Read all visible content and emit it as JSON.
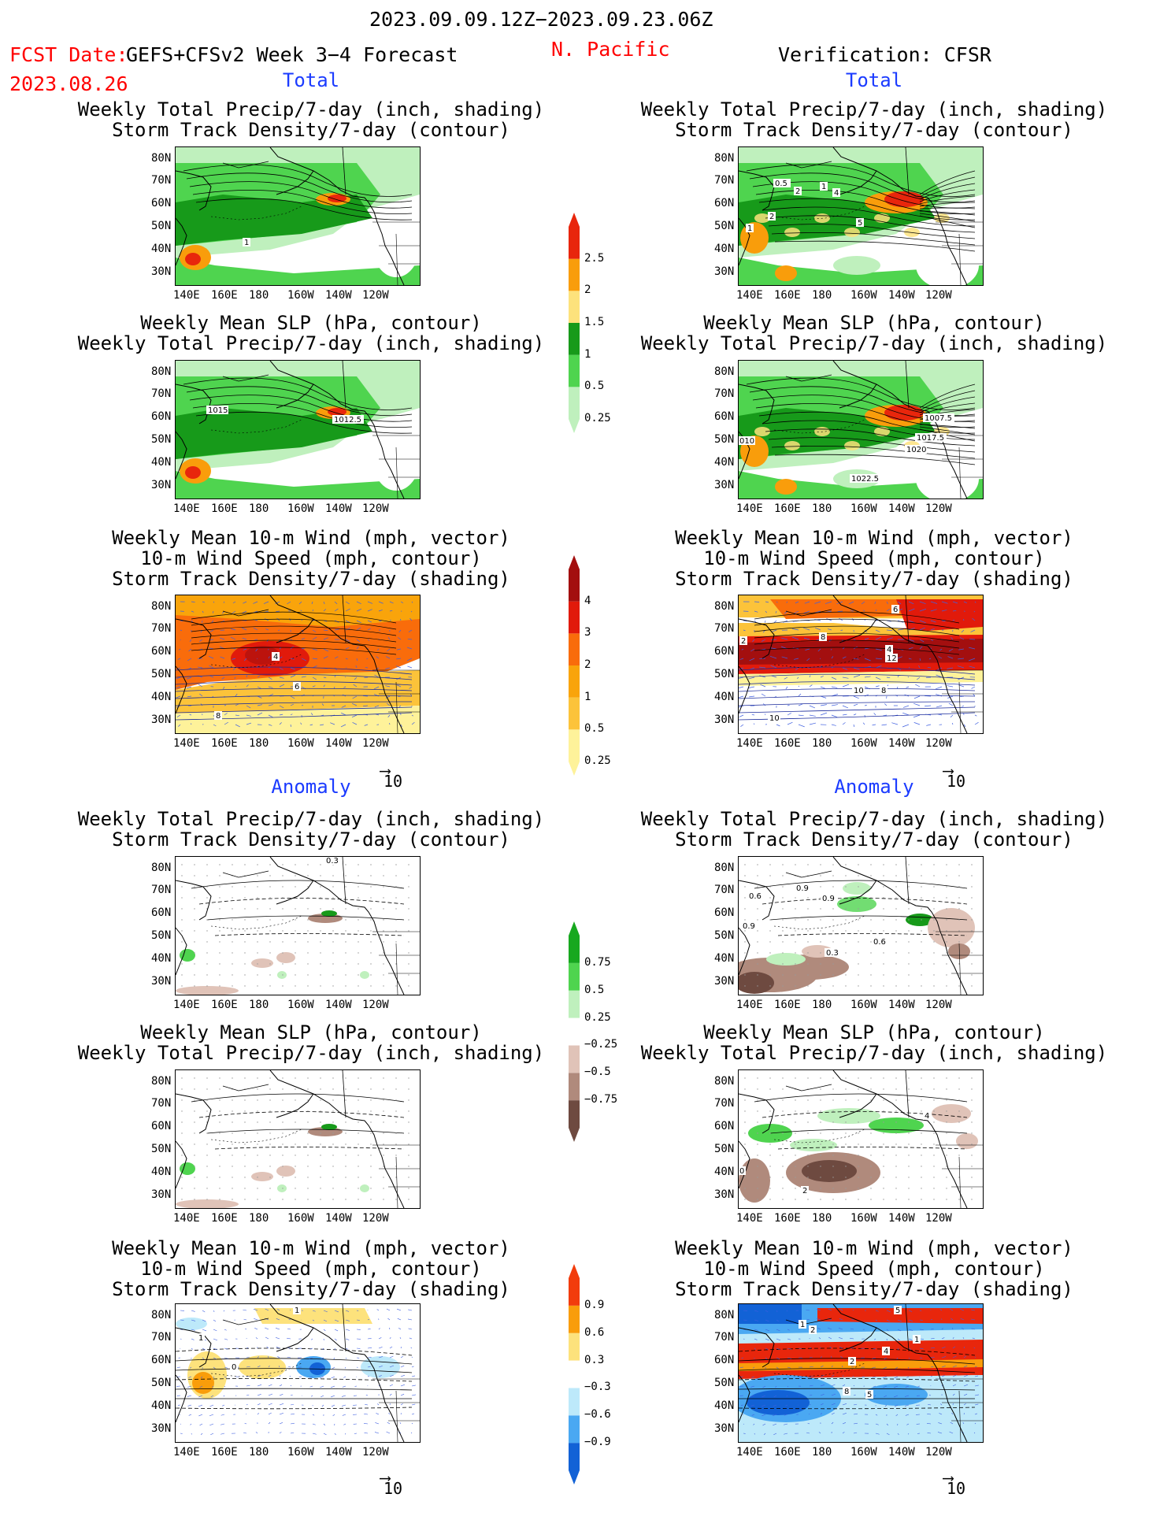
{
  "header": {
    "date_range": "2023.09.09.12Z−2023.09.23.06Z",
    "fcst_label": "FCST Date:",
    "fcst_date": "2023.08.26",
    "forecast_name": "GEFS+CFSv2 Week 3−4 Forecast",
    "region": "N. Pacific",
    "verification": "Verification: CFSR"
  },
  "sections": {
    "total_left": "Total",
    "total_right": "Total",
    "anomaly_left": "Anomaly",
    "anomaly_right": "Anomaly"
  },
  "titles": {
    "precip_track": [
      "Weekly Total Precip/7-day (inch, shading)",
      "Storm Track Density/7-day (contour)"
    ],
    "slp_precip": [
      "Weekly Mean SLP (hPa, contour)",
      "Weekly Total Precip/7-day (inch, shading)"
    ],
    "wind_track": [
      "Weekly Mean 10-m Wind (mph, vector)",
      "10-m Wind Speed (mph, contour)",
      "Storm Track Density/7-day (shading)"
    ]
  },
  "axes": {
    "lat_labels": [
      "80N",
      "70N",
      "60N",
      "50N",
      "40N",
      "30N"
    ],
    "lon_labels": [
      "140E",
      "160E",
      "180",
      "160W",
      "140W",
      "120W"
    ]
  },
  "vector_ref": "10",
  "colorbars": {
    "precip_total": {
      "labels": [
        "2.5",
        "2",
        "1.5",
        "1",
        "0.5",
        "0.25"
      ],
      "colors": [
        "#e8260c",
        "#f99d0b",
        "#fde27c",
        "#179a1a",
        "#4fd44f",
        "#bff0bd"
      ]
    },
    "track_total": {
      "labels": [
        "4",
        "3",
        "2",
        "1",
        "0.5",
        "0.25"
      ],
      "colors": [
        "#a30f0f",
        "#e11a0b",
        "#f96c0b",
        "#f9a40b",
        "#fcc33a",
        "#fef29a"
      ]
    },
    "precip_anom": {
      "labels": [
        "0.75",
        "0.5",
        "0.25",
        "−0.25",
        "−0.5",
        "−0.75"
      ],
      "colors": [
        "#17a81f",
        "#4fd44f",
        "#bff0bd",
        "#ffffff",
        "#e0c3b8",
        "#b08a7c",
        "#6e4a40"
      ]
    },
    "track_anom": {
      "labels": [
        "0.9",
        "0.6",
        "0.3",
        "−0.3",
        "−0.6",
        "−0.9"
      ],
      "colors": [
        "#f23c0c",
        "#f99d0b",
        "#fde27c",
        "#ffffff",
        "#bde9fa",
        "#4aa8f2",
        "#1262d6"
      ]
    }
  },
  "panel_labels": {
    "l1": [
      "1"
    ],
    "r1": [
      "0.5",
      "2",
      "1",
      "4",
      "2",
      "5",
      "1"
    ],
    "l2": [
      "1015",
      "1012.5"
    ],
    "r2": [
      "1007.5",
      "1017.5",
      "1020",
      "010",
      "1022.5"
    ],
    "l3": [
      "4",
      "6",
      "8"
    ],
    "r3": [
      "6",
      "8",
      "4",
      "12",
      "10",
      "8",
      "2",
      "10"
    ],
    "l4": [
      "0.3"
    ],
    "r4": [
      "0.6",
      "0.9",
      "0.9",
      "0.6",
      "0.9",
      "0.3"
    ],
    "l5": [],
    "r5": [
      "4",
      "0",
      "2"
    ],
    "l6": [
      "1",
      "1",
      "0"
    ],
    "r6": [
      "5",
      "1",
      "2",
      "1",
      "2",
      "4",
      "8",
      "5"
    ]
  }
}
